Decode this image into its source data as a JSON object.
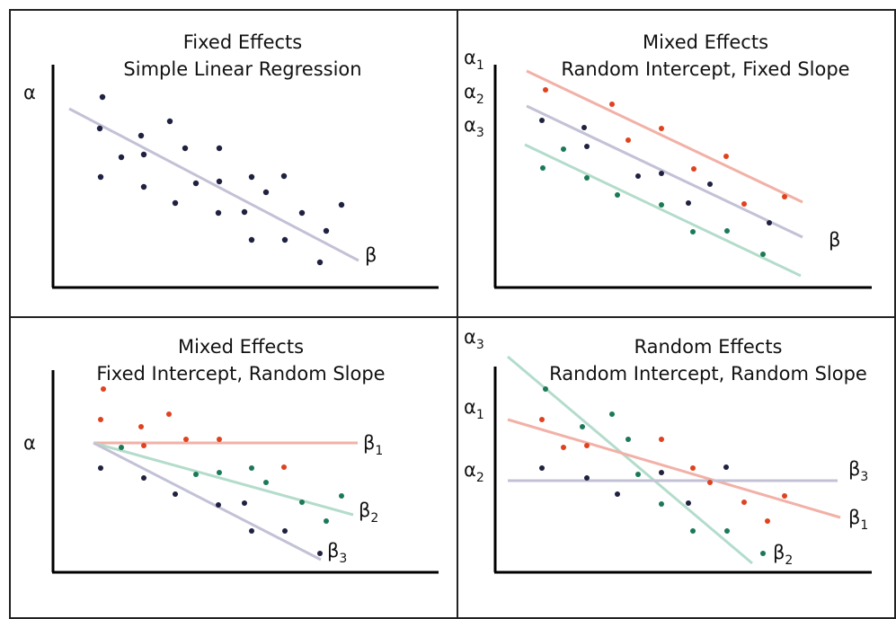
{
  "colors": {
    "dot_dark": "#1f2140",
    "dot_red": "#e0421e",
    "dot_green": "#1a7a55",
    "line_gray": "#c3c1d6",
    "line_red": "#f2b1a7",
    "line_green": "#b3dccb",
    "axis": "#000000",
    "border": "#222222"
  },
  "panels": [
    {
      "id": "fixed-effects",
      "title_line1": "Fixed Effects",
      "title_line2": "Simple Linear Regression",
      "alpha_label": "α",
      "beta_label": "β"
    },
    {
      "id": "mixed-random-intercept",
      "title_line1": "Mixed Effects",
      "title_line2": "Random Intercept, Fixed Slope",
      "alpha_labels": [
        {
          "sym": "α",
          "sub": "1"
        },
        {
          "sym": "α",
          "sub": "2"
        },
        {
          "sym": "α",
          "sub": "3"
        }
      ],
      "beta_label": "β"
    },
    {
      "id": "mixed-random-slope",
      "title_line1": "Mixed Effects",
      "title_line2": "Fixed Intercept, Random Slope",
      "alpha_label": "α",
      "beta_labels": [
        {
          "sym": "β",
          "sub": "1"
        },
        {
          "sym": "β",
          "sub": "2"
        },
        {
          "sym": "β",
          "sub": "3"
        }
      ]
    },
    {
      "id": "random-effects",
      "title_line1": "Random Effects",
      "title_line2": "Random Intercept, Random Slope",
      "alpha_labels": [
        {
          "sym": "α",
          "sub": "3"
        },
        {
          "sym": "α",
          "sub": "1"
        },
        {
          "sym": "α",
          "sub": "2"
        }
      ],
      "beta_labels": [
        {
          "sym": "β",
          "sub": "3"
        },
        {
          "sym": "β",
          "sub": "1"
        },
        {
          "sym": "β",
          "sub": "2"
        }
      ]
    }
  ]
}
